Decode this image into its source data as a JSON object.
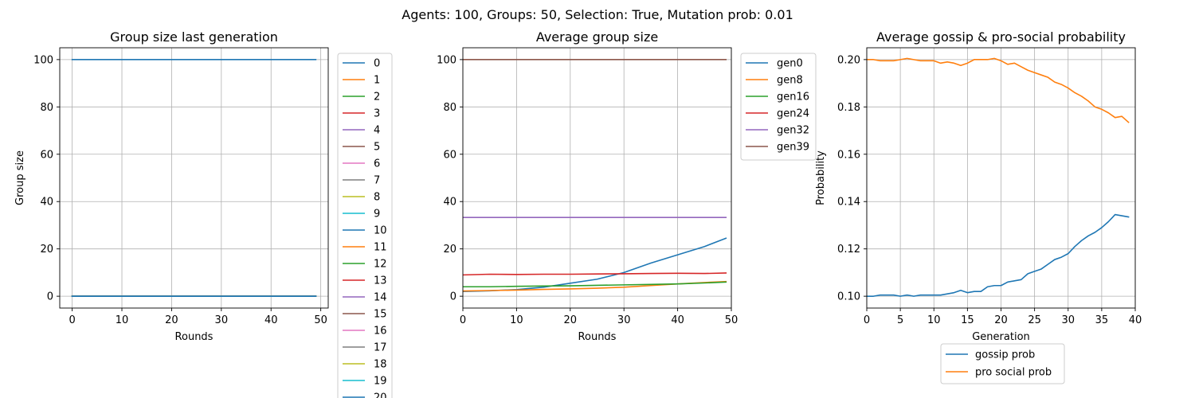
{
  "suptitle": "Agents: 100, Groups: 50, Selection: True, Mutation prob: 0.01",
  "chart_data": [
    {
      "type": "line",
      "title": "Group size last generation",
      "xlabel": "Rounds",
      "ylabel": "Group size",
      "xlim": [
        -2.5,
        51.5
      ],
      "ylim": [
        -5,
        105
      ],
      "xticks": [
        0,
        10,
        20,
        30,
        40,
        50
      ],
      "yticks": [
        0,
        20,
        40,
        60,
        80,
        100
      ],
      "grid": true,
      "legend_position": "outside-right",
      "x_range": [
        0,
        49
      ],
      "series": [
        {
          "name": "0",
          "value": 100
        },
        {
          "name": "1",
          "value": 0
        },
        {
          "name": "2",
          "value": 0
        },
        {
          "name": "3",
          "value": 0
        },
        {
          "name": "4",
          "value": 0
        },
        {
          "name": "5",
          "value": 0
        },
        {
          "name": "6",
          "value": 0
        },
        {
          "name": "7",
          "value": 0
        },
        {
          "name": "8",
          "value": 0
        },
        {
          "name": "9",
          "value": 0
        },
        {
          "name": "10",
          "value": 0
        },
        {
          "name": "11",
          "value": 0
        },
        {
          "name": "12",
          "value": 0
        },
        {
          "name": "13",
          "value": 0
        },
        {
          "name": "14",
          "value": 0
        },
        {
          "name": "15",
          "value": 0
        },
        {
          "name": "16",
          "value": 0
        },
        {
          "name": "17",
          "value": 0
        },
        {
          "name": "18",
          "value": 0
        },
        {
          "name": "19",
          "value": 0
        },
        {
          "name": "20",
          "value": 0
        }
      ]
    },
    {
      "type": "line",
      "title": "Average group size",
      "xlabel": "Rounds",
      "ylabel": "",
      "xlim": [
        0,
        50
      ],
      "ylim": [
        -5,
        105
      ],
      "xticks": [
        0,
        10,
        20,
        30,
        40,
        50
      ],
      "yticks": [
        0,
        20,
        40,
        60,
        80,
        100
      ],
      "grid": true,
      "legend_position": "outside-right",
      "x": [
        0,
        5,
        10,
        15,
        20,
        25,
        30,
        35,
        40,
        45,
        49
      ],
      "series": [
        {
          "name": "gen0",
          "values": [
            2,
            2.3,
            2.8,
            3.8,
            5.5,
            7.2,
            10,
            14,
            17.5,
            21,
            24.5
          ]
        },
        {
          "name": "gen8",
          "values": [
            2.2,
            2.4,
            2.6,
            2.9,
            3.1,
            3.4,
            3.8,
            4.5,
            5.2,
            5.8,
            6.2
          ]
        },
        {
          "name": "gen16",
          "values": [
            4.0,
            4.0,
            4.2,
            4.3,
            4.4,
            4.6,
            4.8,
            5.0,
            5.2,
            5.6,
            6.0
          ]
        },
        {
          "name": "gen24",
          "values": [
            9.0,
            9.3,
            9.2,
            9.3,
            9.3,
            9.4,
            9.5,
            9.6,
            9.7,
            9.6,
            9.8
          ]
        },
        {
          "name": "gen32",
          "values": [
            33.3,
            33.3,
            33.3,
            33.3,
            33.3,
            33.3,
            33.3,
            33.3,
            33.3,
            33.3,
            33.3
          ]
        },
        {
          "name": "gen39",
          "values": [
            100,
            100,
            100,
            100,
            100,
            100,
            100,
            100,
            100,
            100,
            100
          ]
        }
      ]
    },
    {
      "type": "line",
      "title": "Average gossip & pro-social probability",
      "xlabel": "Generation",
      "ylabel": "Probability",
      "xlim": [
        0,
        40
      ],
      "ylim": [
        0.095,
        0.205
      ],
      "xticks": [
        0,
        5,
        10,
        15,
        20,
        25,
        30,
        35,
        40
      ],
      "yticks": [
        0.1,
        0.12,
        0.14,
        0.16,
        0.18,
        0.2
      ],
      "grid": true,
      "legend_position": "below",
      "x": [
        0,
        1,
        2,
        3,
        4,
        5,
        6,
        7,
        8,
        9,
        10,
        11,
        12,
        13,
        14,
        15,
        16,
        17,
        18,
        19,
        20,
        21,
        22,
        23,
        24,
        25,
        26,
        27,
        28,
        29,
        30,
        31,
        32,
        33,
        34,
        35,
        36,
        37,
        38,
        39
      ],
      "series": [
        {
          "name": "gossip prob",
          "values": [
            0.1,
            0.1,
            0.1005,
            0.1005,
            0.1005,
            0.1,
            0.1005,
            0.1,
            0.1005,
            0.1005,
            0.1005,
            0.1005,
            0.101,
            0.1015,
            0.1025,
            0.1015,
            0.102,
            0.102,
            0.104,
            0.1045,
            0.1045,
            0.106,
            0.1065,
            0.107,
            0.1095,
            0.1105,
            0.1115,
            0.1135,
            0.1155,
            0.1165,
            0.118,
            0.121,
            0.1235,
            0.1255,
            0.127,
            0.129,
            0.1315,
            0.1345,
            0.134,
            0.1335
          ]
        },
        {
          "name": "pro social prob",
          "values": [
            0.2,
            0.2,
            0.1995,
            0.1995,
            0.1995,
            0.2,
            0.2005,
            0.2,
            0.1995,
            0.1995,
            0.1995,
            0.1985,
            0.199,
            0.1985,
            0.1975,
            0.1985,
            0.2,
            0.2,
            0.2,
            0.2005,
            0.1995,
            0.198,
            0.1985,
            0.197,
            0.1955,
            0.1945,
            0.1935,
            0.1925,
            0.1905,
            0.1895,
            0.188,
            0.186,
            0.1845,
            0.1825,
            0.18,
            0.179,
            0.1775,
            0.1755,
            0.176,
            0.1735
          ]
        }
      ]
    }
  ]
}
